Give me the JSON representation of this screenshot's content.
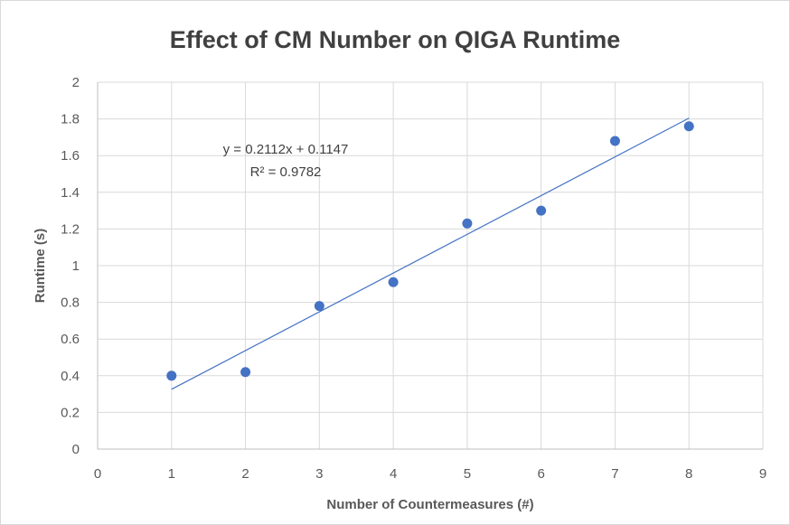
{
  "chart_data": {
    "type": "scatter",
    "title": "Effect of CM Number on QIGA Runtime",
    "xlabel": "Number of Countermeasures (#)",
    "ylabel": "Runtime (s)",
    "xlim": [
      0,
      9
    ],
    "ylim": [
      0,
      2
    ],
    "x_ticks": [
      "0",
      "1",
      "2",
      "3",
      "4",
      "5",
      "6",
      "7",
      "8",
      "9"
    ],
    "y_ticks": [
      "0",
      "0.2",
      "0.4",
      "0.6",
      "0.8",
      "1",
      "1.2",
      "1.4",
      "1.6",
      "1.8",
      "2"
    ],
    "grid": true,
    "legend": "none",
    "marker_color": "#4472C4",
    "points": [
      {
        "x": 1,
        "y": 0.4
      },
      {
        "x": 2,
        "y": 0.42
      },
      {
        "x": 3,
        "y": 0.78
      },
      {
        "x": 4,
        "y": 0.91
      },
      {
        "x": 5,
        "y": 1.23
      },
      {
        "x": 6,
        "y": 1.3
      },
      {
        "x": 7,
        "y": 1.68
      },
      {
        "x": 8,
        "y": 1.76
      }
    ],
    "trendline": {
      "type": "linear",
      "slope": 0.2112,
      "intercept": 0.1147,
      "x_range": [
        1,
        8
      ],
      "equation_label": "y = 0.2112x + 0.1147",
      "r_squared_label": "R² = 0.9782",
      "color": "#4472C4"
    }
  }
}
